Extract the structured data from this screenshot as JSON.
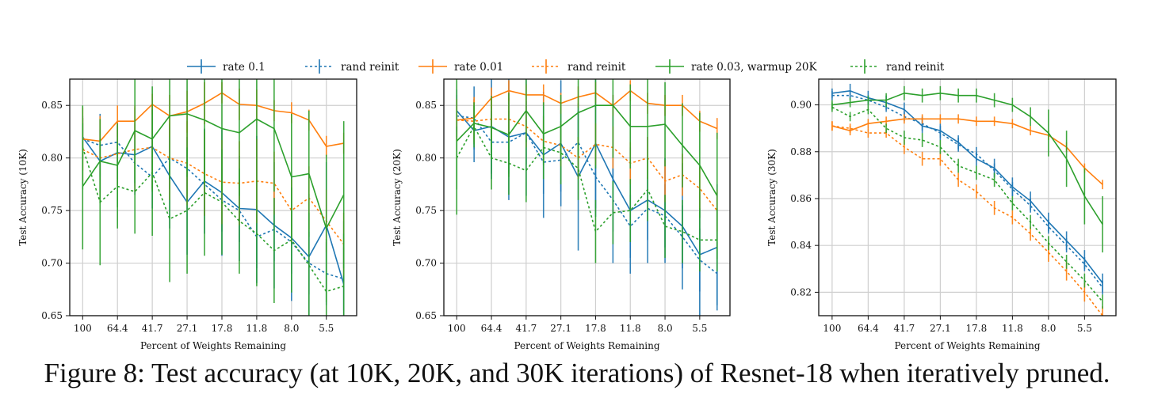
{
  "legend": [
    {
      "label": "rate 0.1",
      "color": "#1f77b4",
      "dashed": false
    },
    {
      "label": "rand reinit",
      "color": "#1f77b4",
      "dashed": true
    },
    {
      "label": "rate 0.01",
      "color": "#ff7f0e",
      "dashed": false
    },
    {
      "label": "rand reinit",
      "color": "#ff7f0e",
      "dashed": true
    },
    {
      "label": "rate 0.03, warmup 20K",
      "color": "#2ca02c",
      "dashed": false
    },
    {
      "label": "rand reinit",
      "color": "#2ca02c",
      "dashed": true
    }
  ],
  "caption": "Figure 8: Test accuracy (at 10K, 20K, and 30K iterations) of Resnet-18 when iteratively pruned.",
  "chart_data": [
    {
      "type": "line",
      "xlabel": "Percent of Weights Remaining",
      "ylabel": "Test Accuracy (10K)",
      "x": [
        100,
        80,
        64.4,
        51.3,
        41.7,
        33.5,
        27.1,
        21.9,
        17.8,
        14.4,
        11.8,
        9.6,
        8.0,
        6.6,
        5.5,
        4.6
      ],
      "xticks": [
        "100",
        "64.4",
        "41.7",
        "27.1",
        "17.8",
        "11.8",
        "8.0",
        "5.5"
      ],
      "ylim": [
        0.65,
        0.875
      ],
      "yticks": [
        "0.65",
        "0.70",
        "0.75",
        "0.80",
        "0.85"
      ],
      "grid": true,
      "series": [
        {
          "name": "rate 0.1",
          "color": "#1f77b4",
          "dashed": false,
          "values": [
            0.82,
            0.797,
            0.805,
            0.803,
            0.811,
            0.783,
            0.758,
            0.778,
            0.767,
            0.752,
            0.751,
            0.736,
            0.724,
            0.706,
            0.736,
            0.68
          ],
          "errors": [
            0.02,
            0.03,
            0.025,
            0.03,
            0.04,
            0.05,
            0.05,
            0.05,
            0.06,
            0.05,
            0.07,
            0.06,
            0.06,
            0.06,
            0.06,
            0.06
          ]
        },
        {
          "name": "rand reinit",
          "color": "#1f77b4",
          "dashed": true,
          "values": [
            0.818,
            0.812,
            0.815,
            0.795,
            0.782,
            0.8,
            0.79,
            0.775,
            0.76,
            0.75,
            0.725,
            0.732,
            0.72,
            0.7,
            0.69,
            0.685
          ],
          "errors": [
            0.02,
            0.03,
            0.02,
            0.03,
            0.03,
            0.03,
            0.03,
            0.03,
            0.03,
            0.03,
            0.03,
            0.03,
            0.03,
            0.03,
            0.03,
            0.03
          ]
        },
        {
          "name": "rate 0.01",
          "color": "#ff7f0e",
          "dashed": false,
          "values": [
            0.818,
            0.816,
            0.835,
            0.835,
            0.851,
            0.84,
            0.844,
            0.852,
            0.862,
            0.851,
            0.85,
            0.845,
            0.843,
            0.836,
            0.811,
            0.814
          ],
          "errors": [
            0.03,
            0.02,
            0.015,
            0.015,
            0.01,
            0.02,
            0.02,
            0.02,
            0.01,
            0.015,
            0.015,
            0.01,
            0.01,
            0.01,
            0.01,
            0.01
          ]
        },
        {
          "name": "rand reinit",
          "color": "#ff7f0e",
          "dashed": true,
          "values": [
            0.808,
            0.8,
            0.804,
            0.808,
            0.81,
            0.8,
            0.795,
            0.785,
            0.777,
            0.776,
            0.778,
            0.776,
            0.75,
            0.762,
            0.74,
            0.718
          ],
          "errors": [
            0.03,
            0.04,
            0.03,
            0.04,
            0.04,
            0.04,
            0.04,
            0.04,
            0.04,
            0.04,
            0.04,
            0.03,
            0.03,
            0.03,
            0.03,
            0.03
          ]
        },
        {
          "name": "rate 0.03, warmup 20K",
          "color": "#2ca02c",
          "dashed": false,
          "values": [
            0.773,
            0.797,
            0.793,
            0.826,
            0.818,
            0.84,
            0.842,
            0.836,
            0.828,
            0.824,
            0.837,
            0.828,
            0.782,
            0.785,
            0.733,
            0.765
          ],
          "errors": [
            0.06,
            0.04,
            0.04,
            0.05,
            0.05,
            0.06,
            0.06,
            0.06,
            0.06,
            0.06,
            0.06,
            0.06,
            0.06,
            0.06,
            0.07,
            0.07
          ]
        },
        {
          "name": "rand reinit",
          "color": "#2ca02c",
          "dashed": true,
          "values": [
            0.81,
            0.758,
            0.773,
            0.768,
            0.786,
            0.742,
            0.75,
            0.767,
            0.758,
            0.74,
            0.728,
            0.712,
            0.722,
            0.698,
            0.673,
            0.678
          ],
          "errors": [
            0.04,
            0.06,
            0.04,
            0.04,
            0.06,
            0.06,
            0.06,
            0.06,
            0.05,
            0.05,
            0.05,
            0.05,
            0.05,
            0.05,
            0.05,
            0.05
          ]
        }
      ]
    },
    {
      "type": "line",
      "xlabel": "Percent of Weights Remaining",
      "ylabel": "Test Accuracy (20K)",
      "x": [
        100,
        80,
        64.4,
        51.3,
        41.7,
        33.5,
        27.1,
        21.9,
        17.8,
        14.4,
        11.8,
        9.6,
        8.0,
        6.6,
        5.5,
        4.6
      ],
      "xticks": [
        "100",
        "64.4",
        "41.7",
        "27.1",
        "17.8",
        "11.8",
        "8.0",
        "5.5"
      ],
      "ylim": [
        0.65,
        0.875
      ],
      "yticks": [
        "0.65",
        "0.70",
        "0.75",
        "0.80",
        "0.85"
      ],
      "grid": true,
      "series": [
        {
          "name": "rate 0.1",
          "color": "#1f77b4",
          "dashed": false,
          "values": [
            0.845,
            0.826,
            0.83,
            0.82,
            0.824,
            0.803,
            0.814,
            0.782,
            0.814,
            0.78,
            0.75,
            0.76,
            0.75,
            0.735,
            0.708,
            0.715
          ],
          "errors": [
            0.02,
            0.03,
            0.05,
            0.06,
            0.06,
            0.06,
            0.06,
            0.07,
            0.07,
            0.08,
            0.06,
            0.06,
            0.05,
            0.06,
            0.06,
            0.06
          ]
        },
        {
          "name": "rand reinit",
          "color": "#1f77b4",
          "dashed": true,
          "values": [
            0.84,
            0.838,
            0.815,
            0.815,
            0.824,
            0.796,
            0.798,
            0.815,
            0.782,
            0.76,
            0.735,
            0.752,
            0.745,
            0.725,
            0.703,
            0.69
          ],
          "errors": [
            0.02,
            0.03,
            0.03,
            0.03,
            0.03,
            0.03,
            0.03,
            0.03,
            0.03,
            0.03,
            0.03,
            0.03,
            0.03,
            0.03,
            0.03,
            0.03
          ]
        },
        {
          "name": "rate 0.01",
          "color": "#ff7f0e",
          "dashed": false,
          "values": [
            0.836,
            0.838,
            0.857,
            0.864,
            0.86,
            0.86,
            0.852,
            0.858,
            0.862,
            0.85,
            0.864,
            0.852,
            0.85,
            0.85,
            0.835,
            0.828
          ],
          "errors": [
            0.02,
            0.02,
            0.01,
            0.01,
            0.01,
            0.01,
            0.01,
            0.01,
            0.01,
            0.01,
            0.01,
            0.01,
            0.01,
            0.01,
            0.01,
            0.01
          ]
        },
        {
          "name": "rand reinit",
          "color": "#ff7f0e",
          "dashed": true,
          "values": [
            0.836,
            0.835,
            0.837,
            0.837,
            0.83,
            0.816,
            0.812,
            0.8,
            0.813,
            0.81,
            0.795,
            0.8,
            0.778,
            0.784,
            0.771,
            0.75
          ],
          "errors": [
            0.02,
            0.02,
            0.02,
            0.02,
            0.02,
            0.02,
            0.02,
            0.02,
            0.02,
            0.02,
            0.02,
            0.02,
            0.02,
            0.02,
            0.02,
            0.02
          ]
        },
        {
          "name": "rate 0.03, warmup 20K",
          "color": "#2ca02c",
          "dashed": false,
          "values": [
            0.816,
            0.833,
            0.829,
            0.822,
            0.845,
            0.823,
            0.83,
            0.843,
            0.85,
            0.85,
            0.83,
            0.83,
            0.832,
            0.812,
            0.793,
            0.764
          ],
          "errors": [
            0.07,
            0.02,
            0.03,
            0.04,
            0.03,
            0.03,
            0.03,
            0.04,
            0.06,
            0.05,
            0.04,
            0.05,
            0.04,
            0.04,
            0.05,
            0.06
          ]
        },
        {
          "name": "rand reinit",
          "color": "#2ca02c",
          "dashed": true,
          "values": [
            0.8,
            0.83,
            0.8,
            0.795,
            0.788,
            0.81,
            0.805,
            0.79,
            0.73,
            0.748,
            0.75,
            0.77,
            0.735,
            0.73,
            0.722,
            0.722
          ],
          "errors": [
            0.03,
            0.02,
            0.03,
            0.03,
            0.03,
            0.03,
            0.03,
            0.03,
            0.03,
            0.03,
            0.03,
            0.03,
            0.03,
            0.03,
            0.03,
            0.03
          ]
        }
      ]
    },
    {
      "type": "line",
      "xlabel": "Percent of Weights Remaining",
      "ylabel": "Test Accuracy (30K)",
      "x": [
        100,
        80,
        64.4,
        51.3,
        41.7,
        33.5,
        27.1,
        21.9,
        17.8,
        14.4,
        11.8,
        9.6,
        8.0,
        6.6,
        5.5,
        4.6
      ],
      "xticks": [
        "100",
        "64.4",
        "41.7",
        "27.1",
        "17.8",
        "11.8",
        "8.0",
        "5.5"
      ],
      "ylim": [
        0.81,
        0.911
      ],
      "yticks": [
        "0.82",
        "0.84",
        "0.86",
        "0.88",
        "0.90"
      ],
      "grid": true,
      "series": [
        {
          "name": "rate 0.1",
          "color": "#1f77b4",
          "dashed": false,
          "values": [
            0.905,
            0.906,
            0.903,
            0.901,
            0.898,
            0.891,
            0.889,
            0.884,
            0.877,
            0.873,
            0.865,
            0.859,
            0.85,
            0.842,
            0.834,
            0.824
          ],
          "errors": [
            0.002,
            0.003,
            0.003,
            0.003,
            0.003,
            0.003,
            0.003,
            0.003,
            0.003,
            0.004,
            0.004,
            0.004,
            0.004,
            0.004,
            0.004,
            0.004
          ]
        },
        {
          "name": "rand reinit",
          "color": "#1f77b4",
          "dashed": true,
          "values": [
            0.904,
            0.904,
            0.902,
            0.899,
            0.895,
            0.892,
            0.888,
            0.883,
            0.879,
            0.872,
            0.864,
            0.857,
            0.848,
            0.84,
            0.832,
            0.822
          ],
          "errors": [
            0.002,
            0.002,
            0.002,
            0.002,
            0.002,
            0.003,
            0.003,
            0.003,
            0.003,
            0.003,
            0.003,
            0.003,
            0.003,
            0.003,
            0.003,
            0.003
          ]
        },
        {
          "name": "rate 0.01",
          "color": "#ff7f0e",
          "dashed": false,
          "values": [
            0.891,
            0.889,
            0.892,
            0.893,
            0.894,
            0.894,
            0.894,
            0.894,
            0.893,
            0.893,
            0.892,
            0.889,
            0.887,
            0.882,
            0.873,
            0.866
          ],
          "errors": [
            0.002,
            0.002,
            0.002,
            0.002,
            0.002,
            0.002,
            0.002,
            0.002,
            0.002,
            0.002,
            0.002,
            0.002,
            0.002,
            0.002,
            0.002,
            0.002
          ]
        },
        {
          "name": "rand reinit",
          "color": "#ff7f0e",
          "dashed": true,
          "values": [
            0.891,
            0.89,
            0.888,
            0.888,
            0.882,
            0.877,
            0.877,
            0.868,
            0.863,
            0.856,
            0.852,
            0.845,
            0.837,
            0.829,
            0.82,
            0.81
          ],
          "errors": [
            0.002,
            0.002,
            0.002,
            0.002,
            0.003,
            0.003,
            0.003,
            0.003,
            0.003,
            0.003,
            0.003,
            0.003,
            0.004,
            0.004,
            0.004,
            0.004
          ]
        },
        {
          "name": "rate 0.03, warmup 20K",
          "color": "#2ca02c",
          "dashed": false,
          "values": [
            0.9,
            0.901,
            0.902,
            0.902,
            0.905,
            0.904,
            0.905,
            0.904,
            0.904,
            0.902,
            0.9,
            0.895,
            0.888,
            0.877,
            0.861,
            0.849
          ],
          "errors": [
            0.002,
            0.002,
            0.002,
            0.003,
            0.003,
            0.003,
            0.003,
            0.003,
            0.003,
            0.003,
            0.003,
            0.004,
            0.01,
            0.012,
            0.012,
            0.012
          ]
        },
        {
          "name": "rand reinit",
          "color": "#2ca02c",
          "dashed": true,
          "values": [
            0.899,
            0.895,
            0.898,
            0.89,
            0.886,
            0.885,
            0.882,
            0.874,
            0.871,
            0.868,
            0.858,
            0.85,
            0.841,
            0.833,
            0.825,
            0.816
          ],
          "errors": [
            0.002,
            0.002,
            0.002,
            0.002,
            0.003,
            0.003,
            0.003,
            0.003,
            0.003,
            0.003,
            0.003,
            0.003,
            0.003,
            0.003,
            0.003,
            0.003
          ]
        }
      ]
    }
  ]
}
